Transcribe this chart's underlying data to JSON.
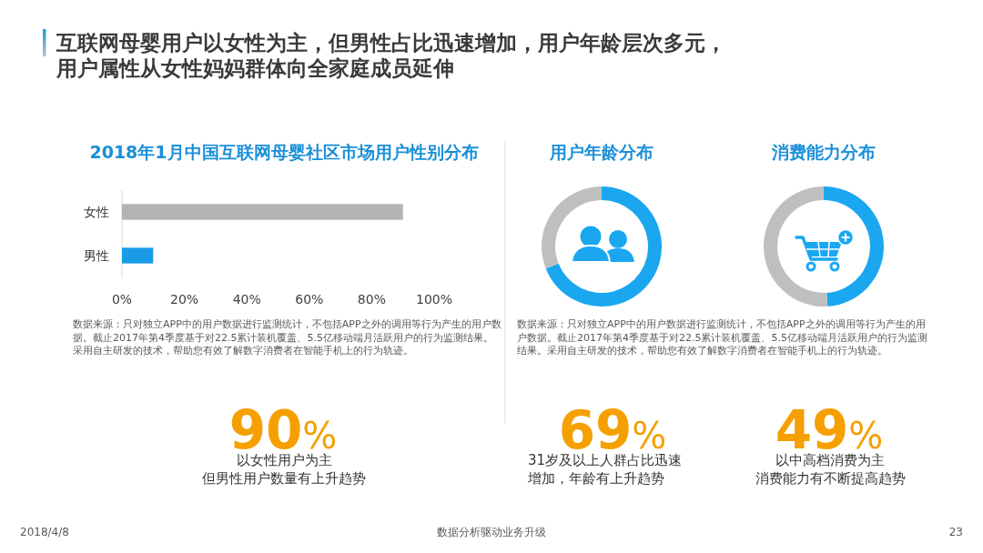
{
  "chart_data": [
    {
      "type": "other",
      "title": "互联网母婴用户以女性为主，但男性占比迅速增加，用户年龄层次多元，用户属性从女性妈妈群体向全家庭成员延伸",
      "annotations": [
        "2018/4/8",
        "数据分析驱动业务升级",
        "23"
      ]
    },
    {
      "type": "bar",
      "orientation": "horizontal",
      "title": "2018年1月中国互联网母婴社区市场用户性别分布",
      "categories": [
        "女性",
        "男性"
      ],
      "values": [
        90,
        10
      ],
      "colors": [
        "#b3b3b3",
        "#1a9be6"
      ],
      "xlim": [
        0,
        100
      ],
      "xticks": [
        {
          "value": 0,
          "label": "0%"
        },
        {
          "value": 20,
          "label": "20%"
        },
        {
          "value": 40,
          "label": "40%"
        },
        {
          "value": 60,
          "label": "60%"
        },
        {
          "value": 80,
          "label": "80%"
        },
        {
          "value": 100,
          "label": "100%"
        }
      ],
      "annotations": [
        "数据来源：只对独立APP中的用户数据进行监测统计，不包括APP之外的调用等行为产生的用户数据。截止2017年第4季度基于对22.5累计装机覆盖、5.5亿移动端月活跃用户的行为监测结果。采用自主研发的技术，帮助您有效了解数字消费者在智能手机上的行为轨迹。",
        "90%",
        "以女性用户为主但男性用户数量有上升趋势"
      ]
    },
    {
      "type": "donut",
      "title": "用户年龄分布",
      "categories": [
        null,
        null
      ],
      "values": [
        69,
        31
      ],
      "colors": [
        "#1aa7f0",
        "#bfbfbf"
      ],
      "annotations": [
        "数据来源：只对独立APP中的用户数据进行监测统计，不包括APP之外的调用等行为产生的用户数据。截止2017年第4季度基于对22.5累计装机覆盖、5.5亿移动端月活跃用户的行为监测结果。采用自主研发的技术，帮助您有效了解数字消费者在智能手机上的行为轨迹。",
        "69%",
        "31岁及以上人群占比迅速增加，年龄有上升趋势"
      ]
    },
    {
      "type": "donut",
      "title": "消费能力分布",
      "categories": [
        null,
        null
      ],
      "values": [
        49,
        51
      ],
      "colors": [
        "#1aa7f0",
        "#bfbfbf"
      ],
      "annotations": [
        "49%",
        "以中高档消费为主消费能力有不断提高趋势"
      ]
    }
  ]
}
